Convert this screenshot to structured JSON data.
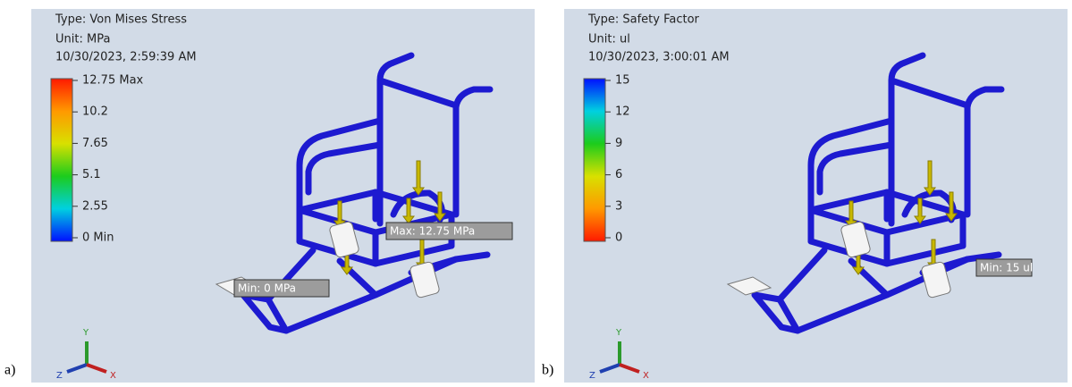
{
  "panels": [
    {
      "label": "a)",
      "type_text": "Type: Von Mises Stress",
      "unit_text": "Unit: MPa",
      "timestamp": "10/30/2023, 2:59:39 AM",
      "legend": [
        "12.75 Max",
        "10.2",
        "7.65",
        "5.1",
        "2.55",
        "0 Min"
      ],
      "probes": [
        "Max: 12.75 MPa",
        "Min: 0 MPa"
      ],
      "axes": [
        "Y",
        "Z",
        "X"
      ]
    },
    {
      "label": "b)",
      "type_text": "Type: Safety Factor",
      "unit_text": "Unit: ul",
      "timestamp": "10/30/2023, 3:00:01 AM",
      "legend": [
        "15",
        "12",
        "9",
        "6",
        "3",
        "0"
      ],
      "probes": [
        "Min: 15 ul"
      ],
      "axes": [
        "Y",
        "Z",
        "X"
      ]
    }
  ]
}
